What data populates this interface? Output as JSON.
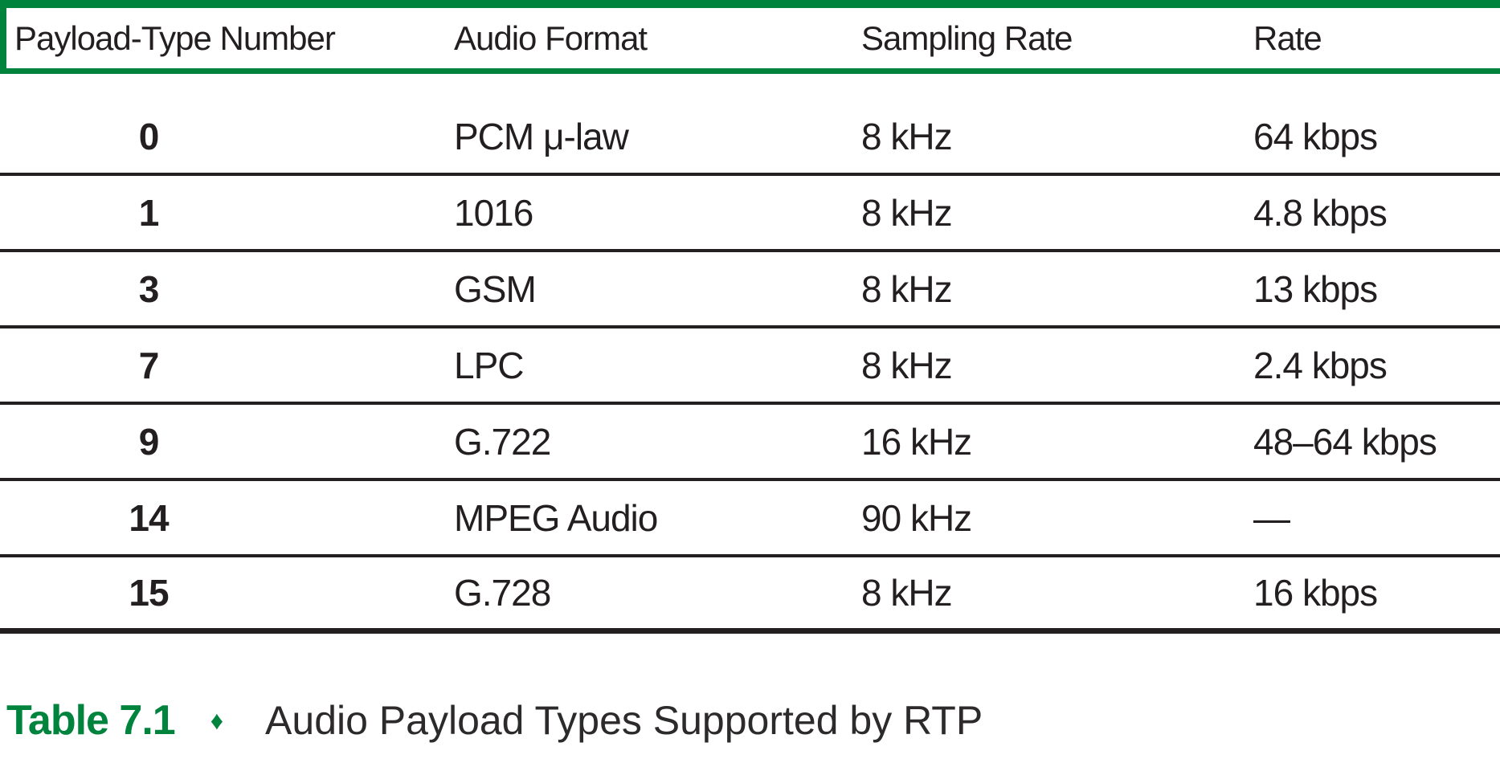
{
  "table": {
    "columns": [
      {
        "key": "payload_type",
        "label": "Payload-Type Number"
      },
      {
        "key": "audio_format",
        "label": "Audio Format"
      },
      {
        "key": "sampling_rate",
        "label": "Sampling Rate"
      },
      {
        "key": "rate",
        "label": "Rate"
      }
    ],
    "rows": [
      {
        "payload_type": "0",
        "audio_format": "PCM μ-law",
        "sampling_rate": "8 kHz",
        "rate": "64 kbps"
      },
      {
        "payload_type": "1",
        "audio_format": "1016",
        "sampling_rate": "8 kHz",
        "rate": "4.8 kbps"
      },
      {
        "payload_type": "3",
        "audio_format": "GSM",
        "sampling_rate": "8 kHz",
        "rate": "13 kbps"
      },
      {
        "payload_type": "7",
        "audio_format": "LPC",
        "sampling_rate": "8 kHz",
        "rate": "2.4 kbps"
      },
      {
        "payload_type": "9",
        "audio_format": "G.722",
        "sampling_rate": "16 kHz",
        "rate": "48–64 kbps"
      },
      {
        "payload_type": "14",
        "audio_format": "MPEG Audio",
        "sampling_rate": "90 kHz",
        "rate": "—"
      },
      {
        "payload_type": "15",
        "audio_format": "G.728",
        "sampling_rate": "8 kHz",
        "rate": "16 kbps"
      }
    ]
  },
  "caption": {
    "label": "Table 7.1",
    "diamond": "♦",
    "text": "Audio Payload Types Supported by RTP"
  },
  "colors": {
    "accent_green": "#00843D",
    "line_black": "#231F20"
  }
}
